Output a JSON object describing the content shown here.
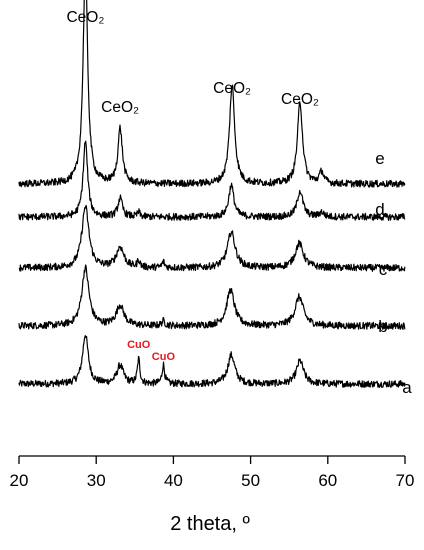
{
  "chart_data": {
    "type": "line",
    "title": "",
    "xlabel": "2 theta, º",
    "ylabel": "",
    "xlim": [
      20,
      70
    ],
    "x_ticks": [
      20,
      30,
      40,
      50,
      60,
      70
    ],
    "grid": false,
    "y_axis_shown": false,
    "series": [
      {
        "name": "a",
        "color": "#000000",
        "peaks": [
          {
            "x": 28.6,
            "h": 0.85,
            "w": 0.45
          },
          {
            "x": 33.1,
            "h": 0.32,
            "w": 0.5
          },
          {
            "x": 35.5,
            "h": 0.42,
            "w": 0.2
          },
          {
            "x": 38.7,
            "h": 0.33,
            "w": 0.2
          },
          {
            "x": 47.5,
            "h": 0.5,
            "w": 0.55
          },
          {
            "x": 56.4,
            "h": 0.4,
            "w": 0.55
          }
        ]
      },
      {
        "name": "b",
        "color": "#000000",
        "peaks": [
          {
            "x": 28.6,
            "h": 1.0,
            "w": 0.55
          },
          {
            "x": 33.1,
            "h": 0.35,
            "w": 0.6
          },
          {
            "x": 38.7,
            "h": 0.08,
            "w": 0.25
          },
          {
            "x": 47.4,
            "h": 0.62,
            "w": 0.6
          },
          {
            "x": 56.3,
            "h": 0.5,
            "w": 0.65
          }
        ]
      },
      {
        "name": "c",
        "color": "#000000",
        "peaks": [
          {
            "x": 28.6,
            "h": 1.05,
            "w": 0.55
          },
          {
            "x": 33.1,
            "h": 0.35,
            "w": 0.6
          },
          {
            "x": 35.5,
            "h": 0.12,
            "w": 0.2
          },
          {
            "x": 38.7,
            "h": 0.1,
            "w": 0.2
          },
          {
            "x": 47.5,
            "h": 0.62,
            "w": 0.6
          },
          {
            "x": 56.3,
            "h": 0.42,
            "w": 0.65
          }
        ]
      },
      {
        "name": "d",
        "color": "#000000",
        "peaks": [
          {
            "x": 28.6,
            "h": 1.3,
            "w": 0.35
          },
          {
            "x": 33.1,
            "h": 0.32,
            "w": 0.35
          },
          {
            "x": 35.5,
            "h": 0.08,
            "w": 0.2
          },
          {
            "x": 47.5,
            "h": 0.55,
            "w": 0.4
          },
          {
            "x": 56.4,
            "h": 0.45,
            "w": 0.45
          },
          {
            "x": 59.2,
            "h": 0.08,
            "w": 0.35
          }
        ]
      },
      {
        "name": "e",
        "color": "#000000",
        "peaks": [
          {
            "x": 28.6,
            "h": 3.8,
            "w": 0.35
          },
          {
            "x": 33.1,
            "h": 0.95,
            "w": 0.35
          },
          {
            "x": 47.6,
            "h": 1.7,
            "w": 0.4
          },
          {
            "x": 56.4,
            "h": 1.4,
            "w": 0.4
          },
          {
            "x": 59.2,
            "h": 0.2,
            "w": 0.35
          }
        ]
      }
    ],
    "annotations": [
      {
        "text": "CeO₂",
        "x": 28.6,
        "color": "#000000"
      },
      {
        "text": "CeO₂",
        "x": 33.1,
        "color": "#000000"
      },
      {
        "text": "CeO₂",
        "x": 47.6,
        "color": "#000000"
      },
      {
        "text": "CeO₂",
        "x": 56.4,
        "color": "#000000"
      },
      {
        "text": "CuO",
        "x": 35.5,
        "color": "#e8191c"
      },
      {
        "text": "CuO",
        "x": 38.7,
        "color": "#e8191c"
      }
    ]
  }
}
